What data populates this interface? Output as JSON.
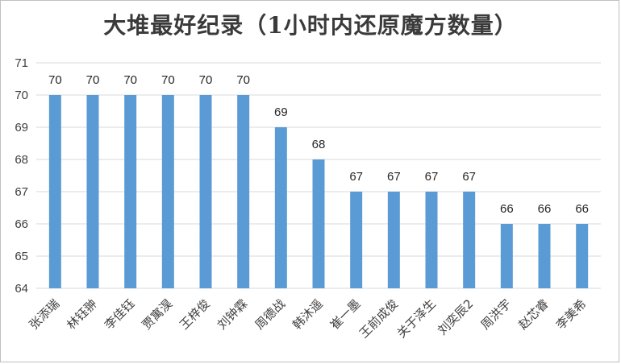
{
  "chart_data": {
    "type": "bar",
    "title": "大堆最好纪录（1小时内还原魔方数量）",
    "xlabel": "",
    "ylabel": "",
    "categories": [
      "张添瑞",
      "林钰翀",
      "李佳钰",
      "贾寓淏",
      "王梓俊",
      "刘钟霖",
      "周德战",
      "韩沐遥",
      "崔一墨",
      "王前成俊",
      "关于泽生",
      "刘奕辰2",
      "周洪宇",
      "赵芯睿",
      "李美希"
    ],
    "values": [
      70,
      70,
      70,
      70,
      70,
      70,
      69,
      68,
      67,
      67,
      67,
      67,
      66,
      66,
      66
    ],
    "ylim": [
      64,
      71
    ],
    "yticks": [
      64,
      65,
      66,
      67,
      68,
      69,
      70,
      71
    ],
    "grid": true,
    "legend": "none",
    "bar_color": "#5b9bd5",
    "grid_color": "#d9d9d9"
  }
}
